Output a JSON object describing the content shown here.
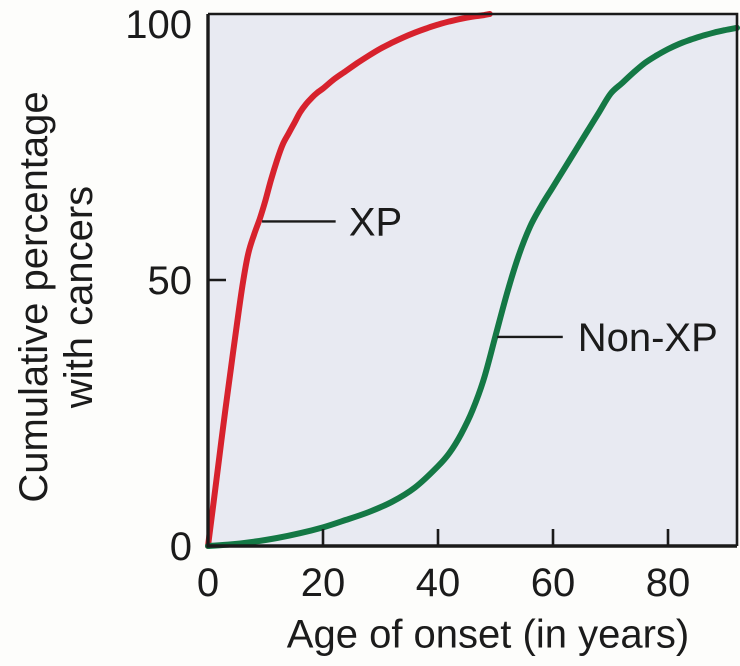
{
  "figure": {
    "y_axis_label_line1": "Cumulative percentage",
    "y_axis_label_line2": "with cancers",
    "x_axis_label": "Age of onset (in years)"
  },
  "chart_data": {
    "type": "line",
    "title": "",
    "xlabel": "Age of onset (in years)",
    "ylabel": "Cumulative percentage with cancers",
    "xlim": [
      0,
      92
    ],
    "ylim": [
      0,
      100
    ],
    "x_ticks": [
      0,
      20,
      40,
      60,
      80
    ],
    "y_ticks": [
      0,
      50,
      100
    ],
    "grid": false,
    "legend_position": "inline-annotations",
    "colors": {
      "plot_background": "#e8eaf2",
      "axis": "#1a1a1a",
      "text": "#1b1b1b",
      "xp_curve": "#d7222d",
      "non_xp_curve": "#147845"
    },
    "series": [
      {
        "name": "XP",
        "color": "#d7222d",
        "points": [
          [
            0,
            0
          ],
          [
            1,
            8.5
          ],
          [
            2,
            17
          ],
          [
            3,
            25.5
          ],
          [
            4,
            33.5
          ],
          [
            5,
            41.5
          ],
          [
            6,
            49
          ],
          [
            7,
            55
          ],
          [
            8,
            58.5
          ],
          [
            9,
            61.5
          ],
          [
            10,
            65
          ],
          [
            11,
            69
          ],
          [
            12,
            72.5
          ],
          [
            13,
            75.5
          ],
          [
            14,
            77.5
          ],
          [
            15,
            79.5
          ],
          [
            16,
            81.5
          ],
          [
            17,
            83
          ],
          [
            18,
            84.2
          ],
          [
            19,
            85.2
          ],
          [
            20,
            86
          ],
          [
            22,
            87.8
          ],
          [
            24,
            89.3
          ],
          [
            26,
            90.8
          ],
          [
            28,
            92.2
          ],
          [
            30,
            93.5
          ],
          [
            32,
            94.6
          ],
          [
            34,
            95.6
          ],
          [
            36,
            96.5
          ],
          [
            38,
            97.3
          ],
          [
            40,
            98
          ],
          [
            42,
            98.6
          ],
          [
            44,
            99.1
          ],
          [
            46,
            99.5
          ],
          [
            48,
            99.8
          ],
          [
            49,
            100
          ]
        ]
      },
      {
        "name": "Non-XP",
        "color": "#147845",
        "points": [
          [
            0,
            0
          ],
          [
            4,
            0.3
          ],
          [
            8,
            0.8
          ],
          [
            12,
            1.5
          ],
          [
            16,
            2.4
          ],
          [
            20,
            3.5
          ],
          [
            24,
            4.9
          ],
          [
            28,
            6.4
          ],
          [
            32,
            8.3
          ],
          [
            36,
            11
          ],
          [
            40,
            15
          ],
          [
            42,
            17.5
          ],
          [
            44,
            21
          ],
          [
            46,
            25.5
          ],
          [
            48,
            31.5
          ],
          [
            50,
            39.5
          ],
          [
            52,
            47.5
          ],
          [
            54,
            54.5
          ],
          [
            56,
            60
          ],
          [
            58,
            64
          ],
          [
            60,
            67.5
          ],
          [
            62,
            71
          ],
          [
            64,
            74.5
          ],
          [
            66,
            78
          ],
          [
            68,
            81.5
          ],
          [
            70,
            85
          ],
          [
            72,
            87
          ],
          [
            74,
            89
          ],
          [
            76,
            90.8
          ],
          [
            78,
            92.2
          ],
          [
            80,
            93.4
          ],
          [
            82,
            94.4
          ],
          [
            84,
            95.2
          ],
          [
            86,
            95.9
          ],
          [
            88,
            96.5
          ],
          [
            90,
            97
          ],
          [
            92,
            97.4
          ]
        ]
      }
    ],
    "annotations": [
      {
        "label": "XP",
        "y_pct": 61,
        "line_from_age": 9.4,
        "line_to_age": 22.2,
        "label_age": 24.5
      },
      {
        "label": "Non-XP",
        "y_pct": 39.3,
        "line_from_age": 50.3,
        "line_to_age": 61.7,
        "label_age": 64.3
      }
    ]
  }
}
